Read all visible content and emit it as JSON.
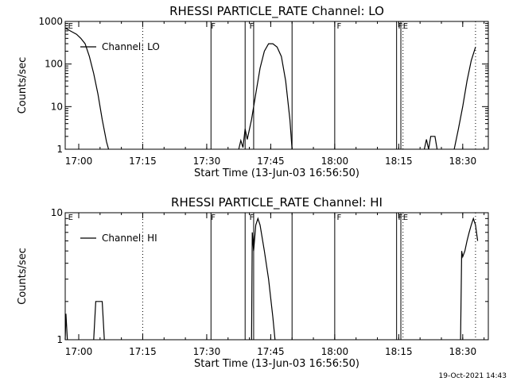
{
  "figure": {
    "footer_timestamp": "19-Oct-2021 14:43"
  },
  "chart_data": [
    {
      "type": "line",
      "title": "RHESSI PARTICLE_RATE Channel: LO",
      "xlabel": "Start Time (13-Jun-03 16:56:50)",
      "ylabel": "Counts/sec",
      "yscale": "log",
      "xlim": [
        "16:56:50",
        "18:36:00"
      ],
      "ylim": [
        1,
        1000
      ],
      "x_ticks": [
        "17:00",
        "17:15",
        "17:30",
        "17:45",
        "18:00",
        "18:15",
        "18:30"
      ],
      "y_ticks": [
        "1",
        "10",
        "100",
        "1000"
      ],
      "legend": {
        "label": "Channel: LO",
        "placement": "top-left"
      },
      "grid": false,
      "flags": [
        {
          "time": "16:57:30",
          "label": "E"
        },
        {
          "time": "17:31:00",
          "label": "F"
        },
        {
          "time": "17:40:00",
          "label": "F"
        },
        {
          "time": "18:00:30",
          "label": "F"
        },
        {
          "time": "18:14:50",
          "label": "F"
        },
        {
          "time": "18:16:00",
          "label": "E"
        }
      ],
      "solid_markers": [
        "17:31:00",
        "17:39:00",
        "17:41:00",
        "17:50:00",
        "18:00:00",
        "18:14:30",
        "18:15:30"
      ],
      "dotted_markers": [
        "17:15:00",
        "18:16:00",
        "18:33:00"
      ],
      "series": [
        {
          "name": "Channel: LO",
          "segments": [
            [
              [
                "16:56:50",
                700
              ],
              [
                "16:58:00",
                600
              ],
              [
                "16:59:30",
                500
              ],
              [
                "17:00:30",
                400
              ],
              [
                "17:01:30",
                300
              ],
              [
                "17:02:30",
                150
              ],
              [
                "17:03:30",
                60
              ],
              [
                "17:04:30",
                20
              ],
              [
                "17:05:30",
                5
              ],
              [
                "17:06:30",
                1.5
              ],
              [
                "17:07:00",
                1
              ]
            ],
            [
              [
                "17:37:30",
                1
              ],
              [
                "17:38:00",
                1.6
              ],
              [
                "17:38:30",
                1.1
              ],
              [
                "17:39:00",
                3
              ],
              [
                "17:39:30",
                1.7
              ],
              [
                "17:40:30",
                5
              ],
              [
                "17:41:30",
                20
              ],
              [
                "17:42:30",
                80
              ],
              [
                "17:43:30",
                200
              ],
              [
                "17:44:30",
                300
              ],
              [
                "17:45:30",
                300
              ],
              [
                "17:46:30",
                250
              ],
              [
                "17:47:30",
                150
              ],
              [
                "17:48:30",
                40
              ],
              [
                "17:49:30",
                5
              ],
              [
                "17:50:00",
                1
              ]
            ],
            [
              [
                "18:21:00",
                1
              ],
              [
                "18:21:30",
                1.7
              ],
              [
                "18:22:00",
                1
              ],
              [
                "18:22:30",
                2
              ],
              [
                "18:23:30",
                2
              ],
              [
                "18:24:00",
                1
              ]
            ],
            [
              [
                "18:28:00",
                1
              ],
              [
                "18:29:00",
                3
              ],
              [
                "18:30:00",
                10
              ],
              [
                "18:31:00",
                40
              ],
              [
                "18:32:00",
                120
              ],
              [
                "18:33:00",
                250
              ]
            ]
          ]
        }
      ]
    },
    {
      "type": "line",
      "title": "RHESSI PARTICLE_RATE Channel: HI",
      "xlabel": "Start Time (13-Jun-03 16:56:50)",
      "ylabel": "Counts/sec",
      "yscale": "log",
      "xlim": [
        "16:56:50",
        "18:36:00"
      ],
      "ylim": [
        1,
        10
      ],
      "x_ticks": [
        "17:00",
        "17:15",
        "17:30",
        "17:45",
        "18:00",
        "18:15",
        "18:30"
      ],
      "y_ticks": [
        "1",
        "10"
      ],
      "legend": {
        "label": "Channel: HI",
        "placement": "top-left"
      },
      "grid": false,
      "flags": [
        {
          "time": "16:57:30",
          "label": "E"
        },
        {
          "time": "17:31:00",
          "label": "F"
        },
        {
          "time": "17:40:00",
          "label": "F"
        },
        {
          "time": "18:00:30",
          "label": "F"
        },
        {
          "time": "18:14:50",
          "label": "F"
        },
        {
          "time": "18:16:00",
          "label": "E"
        }
      ],
      "solid_markers": [
        "17:31:00",
        "17:39:00",
        "17:41:00",
        "17:50:00",
        "18:00:00",
        "18:14:30",
        "18:15:30"
      ],
      "dotted_markers": [
        "17:15:00",
        "18:16:00",
        "18:33:00"
      ],
      "series": [
        {
          "name": "Channel: HI",
          "segments": [
            [
              [
                "16:56:50",
                1
              ],
              [
                "16:57:00",
                1.6
              ],
              [
                "16:57:20",
                1
              ]
            ],
            [
              [
                "17:03:30",
                1
              ],
              [
                "17:04:00",
                2
              ],
              [
                "17:05:30",
                2
              ],
              [
                "17:06:00",
                1
              ]
            ],
            [
              [
                "17:40:30",
                1
              ],
              [
                "17:40:40",
                7
              ],
              [
                "17:41:00",
                5
              ],
              [
                "17:41:30",
                8
              ],
              [
                "17:42:00",
                9
              ],
              [
                "17:42:30",
                8
              ],
              [
                "17:43:30",
                5
              ],
              [
                "17:44:30",
                3
              ],
              [
                "17:45:30",
                1.5
              ],
              [
                "17:46:00",
                1
              ]
            ],
            [
              [
                "18:29:30",
                1
              ],
              [
                "18:29:45",
                5
              ],
              [
                "18:30:00",
                4.5
              ],
              [
                "18:30:30",
                5
              ],
              [
                "18:31:00",
                6
              ],
              [
                "18:31:30",
                7
              ],
              [
                "18:32:00",
                8
              ],
              [
                "18:32:30",
                9
              ],
              [
                "18:33:00",
                8
              ],
              [
                "18:33:30",
                6
              ]
            ]
          ]
        }
      ]
    }
  ]
}
